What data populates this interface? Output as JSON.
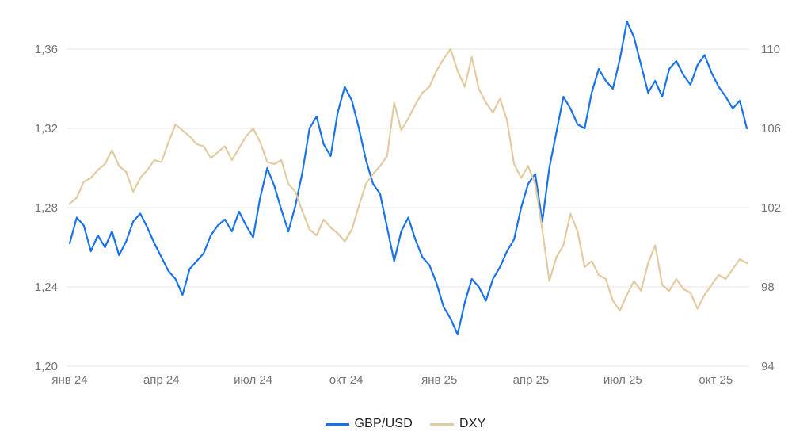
{
  "chart_data": {
    "type": "line",
    "title": "",
    "x_description": "weekly data points, week 0 = early Jan 2024, week 96 = late Oct / early Nov 2025",
    "x_step_weeks": 1,
    "grid": true,
    "legend_position": "bottom",
    "x_ticks": [
      {
        "label": "янв 24",
        "week": 0
      },
      {
        "label": "апр 24",
        "week": 13
      },
      {
        "label": "июл 24",
        "week": 26
      },
      {
        "label": "окт 24",
        "week": 39.2
      },
      {
        "label": "янв 25",
        "week": 52.4
      },
      {
        "label": "апр 25",
        "week": 65.4
      },
      {
        "label": "июл 25",
        "week": 78.4
      },
      {
        "label": "окт 25",
        "week": 91.6
      }
    ],
    "y_axis_left": {
      "series": "GBP/USD",
      "tick_labels": [
        "1,36",
        "1,32",
        "1,28",
        "1,24",
        "1,20"
      ],
      "tick_values": [
        1.36,
        1.32,
        1.28,
        1.24,
        1.2
      ],
      "range": [
        1.2,
        1.36
      ]
    },
    "y_axis_right": {
      "series": "DXY",
      "tick_labels": [
        "110",
        "106",
        "102",
        "98",
        "94"
      ],
      "tick_values": [
        110,
        106,
        102,
        98,
        94
      ],
      "range": [
        94,
        110
      ]
    },
    "series": [
      {
        "name": "GBP/USD",
        "axis": "left",
        "color": "#1a73e8",
        "values": [
          1.262,
          1.275,
          1.271,
          1.258,
          1.266,
          1.26,
          1.268,
          1.256,
          1.263,
          1.273,
          1.277,
          1.27,
          1.262,
          1.255,
          1.248,
          1.244,
          1.236,
          1.249,
          1.253,
          1.257,
          1.266,
          1.271,
          1.274,
          1.268,
          1.278,
          1.271,
          1.265,
          1.285,
          1.3,
          1.291,
          1.279,
          1.268,
          1.281,
          1.298,
          1.32,
          1.326,
          1.312,
          1.306,
          1.328,
          1.341,
          1.334,
          1.32,
          1.304,
          1.292,
          1.287,
          1.27,
          1.253,
          1.268,
          1.275,
          1.264,
          1.255,
          1.251,
          1.242,
          1.23,
          1.224,
          1.216,
          1.232,
          1.244,
          1.24,
          1.233,
          1.244,
          1.25,
          1.258,
          1.264,
          1.28,
          1.292,
          1.297,
          1.273,
          1.3,
          1.318,
          1.336,
          1.33,
          1.322,
          1.32,
          1.338,
          1.35,
          1.344,
          1.34,
          1.355,
          1.374,
          1.366,
          1.352,
          1.338,
          1.344,
          1.336,
          1.35,
          1.354,
          1.347,
          1.342,
          1.352,
          1.357,
          1.348,
          1.341,
          1.336,
          1.33,
          1.334,
          1.32
        ]
      },
      {
        "name": "DXY",
        "axis": "right",
        "color": "#e2cba0",
        "values": [
          102.2,
          102.5,
          103.3,
          103.5,
          103.9,
          104.2,
          104.9,
          104.1,
          103.8,
          102.8,
          103.5,
          103.9,
          104.4,
          104.3,
          105.3,
          106.2,
          105.9,
          105.6,
          105.2,
          105.1,
          104.5,
          104.8,
          105.1,
          104.4,
          105.0,
          105.6,
          106.0,
          105.3,
          104.3,
          104.2,
          104.4,
          103.2,
          102.8,
          101.8,
          100.9,
          100.6,
          101.4,
          101.0,
          100.7,
          100.3,
          100.9,
          102.1,
          103.2,
          103.7,
          104.1,
          104.6,
          107.3,
          105.9,
          106.5,
          107.2,
          107.8,
          108.1,
          108.9,
          109.5,
          110.0,
          108.9,
          108.1,
          109.6,
          108.0,
          107.3,
          106.8,
          107.5,
          106.4,
          104.2,
          103.5,
          104.1,
          103.2,
          100.9,
          98.3,
          99.5,
          100.1,
          101.7,
          100.8,
          99.0,
          99.3,
          98.6,
          98.4,
          97.3,
          96.8,
          97.6,
          98.3,
          97.8,
          99.2,
          100.1,
          98.1,
          97.8,
          98.4,
          97.9,
          97.7,
          96.9,
          97.6,
          98.1,
          98.6,
          98.4,
          98.9,
          99.4,
          99.2
        ]
      }
    ],
    "colors": {
      "grid": "#e3e3e3",
      "axis_text": "#757575",
      "legend_text": "#202124",
      "background": "#ffffff"
    }
  }
}
